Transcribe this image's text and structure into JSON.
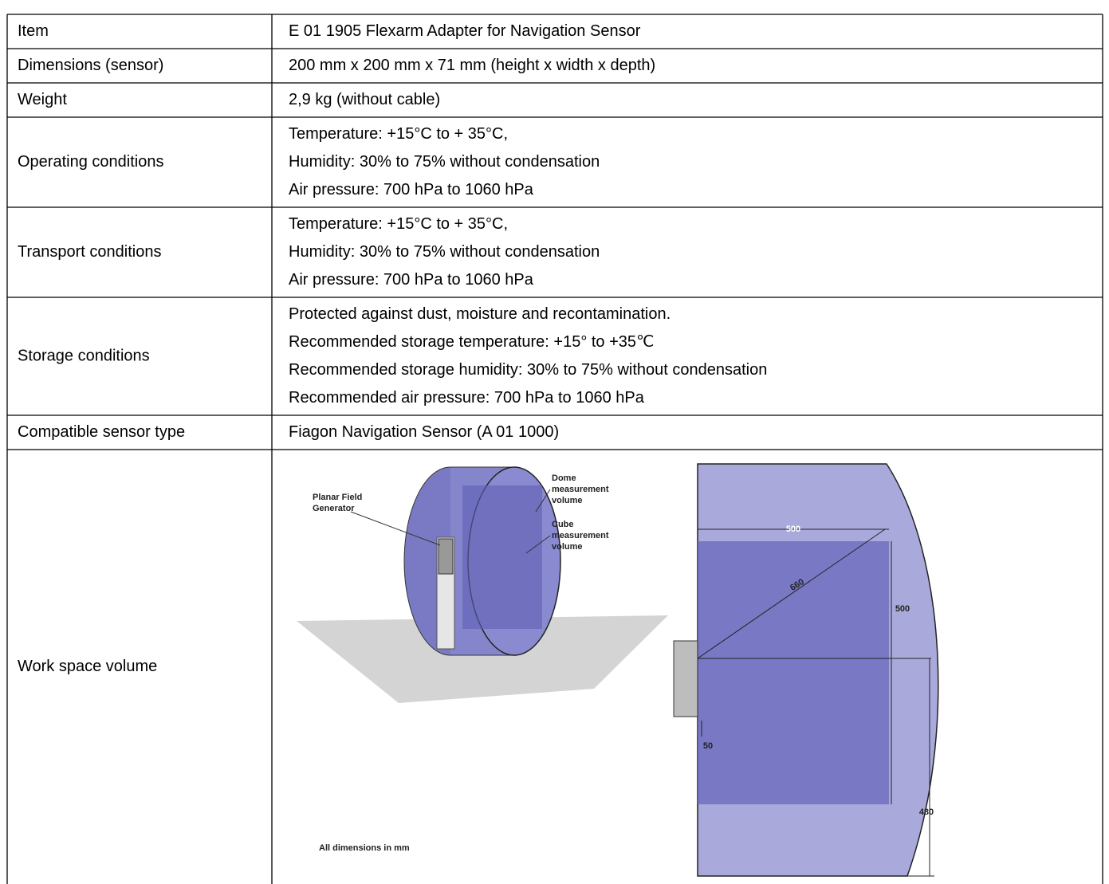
{
  "table": {
    "rows": [
      {
        "label": "Item",
        "lines": [
          "E 01 1905 Flexarm Adapter for Navigation Sensor"
        ]
      },
      {
        "label": "Dimensions (sensor)",
        "lines": [
          "200 mm x 200 mm x 71 mm  (height x width x depth)"
        ]
      },
      {
        "label": "Weight",
        "lines": [
          "2,9 kg (without cable)"
        ]
      },
      {
        "label": "Operating conditions",
        "lines": [
          "Temperature: +15°C to + 35°C,",
          "Humidity: 30% to 75% without condensation",
          "Air pressure: 700 hPa to 1060 hPa"
        ]
      },
      {
        "label": "Transport conditions",
        "lines": [
          "Temperature: +15°C to + 35°C,",
          "Humidity: 30% to 75% without condensation",
          "Air pressure: 700 hPa to 1060 hPa"
        ]
      },
      {
        "label": "Storage conditions",
        "lines": [
          "Protected against dust, moisture and recontamination.",
          "Recommended storage temperature: +15° to +35℃",
          "Recommended storage humidity: 30% to 75% without condensation",
          "Recommended air pressure: 700 hPa to 1060 hPa"
        ]
      },
      {
        "label": "Compatible sensor type",
        "lines": [
          "Fiagon Navigation Sensor (A 01 1000)"
        ]
      },
      {
        "label": "Work space volume",
        "figure": {
          "generator": [
            "Planar Field",
            "Generator"
          ],
          "dome": [
            "Dome",
            "measurement",
            "volume"
          ],
          "cube": [
            "Cube",
            "measurement",
            "volume"
          ],
          "note": "All dimensions in mm",
          "dimensions": [
            "500",
            "500",
            "660",
            "50",
            "480"
          ]
        }
      }
    ]
  }
}
